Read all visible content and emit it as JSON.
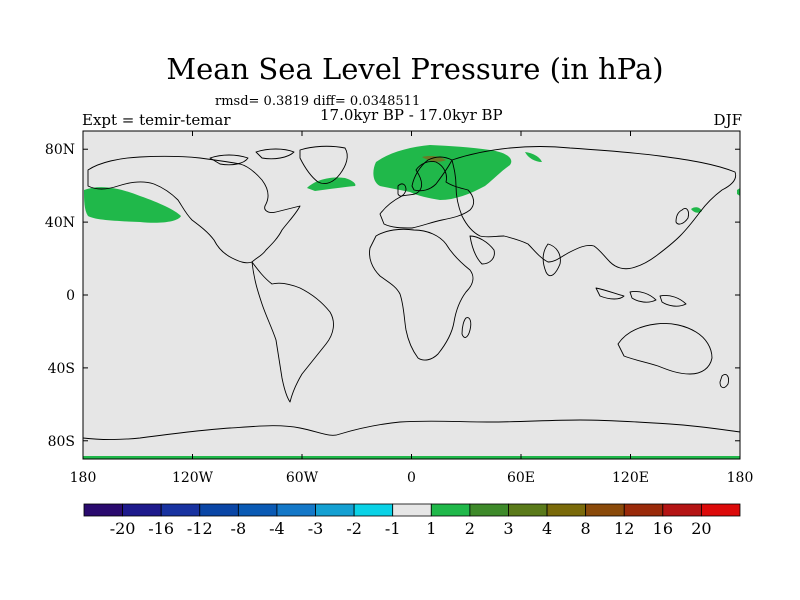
{
  "title": "Mean Sea Level Pressure (in hPa)",
  "stats": "rmsd= 0.3819 diff= 0.0348511",
  "subtitle": "17.0kyr BP - 17.0kyr BP",
  "left_label": "Expt = temir-temar",
  "right_label": "DJF",
  "map": {
    "projection": "cylindrical-equidistant",
    "lon_range": [
      -180,
      180
    ],
    "lat_range": [
      -90,
      90
    ],
    "background_color": "#e6e6e6",
    "lat_ticks": [
      {
        "value": 80,
        "label": "80N"
      },
      {
        "value": 40,
        "label": "40N"
      },
      {
        "value": 0,
        "label": "0"
      },
      {
        "value": -40,
        "label": "40S"
      },
      {
        "value": -80,
        "label": "80S"
      }
    ],
    "lon_ticks": [
      {
        "value": -180,
        "label": "180"
      },
      {
        "value": -120,
        "label": "120W"
      },
      {
        "value": -60,
        "label": "60W"
      },
      {
        "value": 0,
        "label": "0"
      },
      {
        "value": 60,
        "label": "60E"
      },
      {
        "value": 120,
        "label": "120E"
      },
      {
        "value": 180,
        "label": "180"
      }
    ],
    "anomaly_regions": [
      {
        "name": "north-pacific",
        "category": "1 to 2",
        "color": "#20b84a"
      },
      {
        "name": "north-atlantic-europe",
        "category": "1 to 2",
        "color": "#20b84a"
      },
      {
        "name": "scandinavia-core",
        "category": "3 to 4",
        "color": "#6a7a26"
      },
      {
        "name": "east-asia-spot",
        "category": "1 to 2",
        "color": "#20b84a"
      }
    ]
  },
  "colorbar": {
    "labels": [
      "-20",
      "-16",
      "-12",
      "-8",
      "-4",
      "-3",
      "-2",
      "-1",
      "1",
      "2",
      "3",
      "4",
      "8",
      "12",
      "16",
      "20"
    ],
    "colors": [
      "#2a0a6e",
      "#1e1a8c",
      "#1832a0",
      "#0a46a6",
      "#0a5ab4",
      "#1478c8",
      "#14a0d2",
      "#0ad2e6",
      "#e6e6e6",
      "#20b84a",
      "#3e8a2a",
      "#5a7a1a",
      "#7a6a0a",
      "#8a4a0a",
      "#9a2a0a",
      "#b41414",
      "#dc0a0a"
    ]
  }
}
